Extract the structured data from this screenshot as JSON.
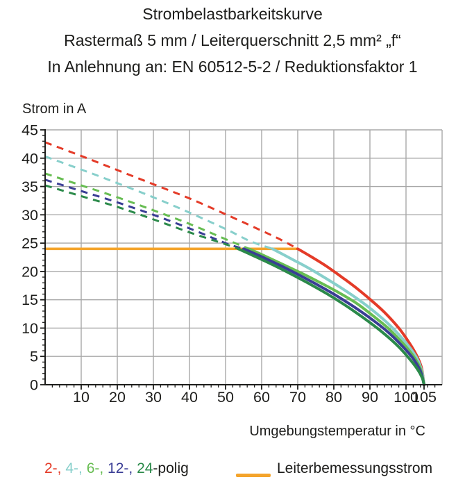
{
  "title": {
    "line1": "Strombelastbarkeitskurve",
    "line2": "Rastermaß 5 mm / Leiterquerschnitt 2,5 mm² „f“",
    "line3": "In Anlehnung an: EN 60512-5-2 / Reduktionsfaktor 1"
  },
  "chart_data": {
    "type": "line",
    "title": "Strombelastbarkeitskurve",
    "subtitle": "Rastermaß 5 mm / Leiterquerschnitt 2,5 mm² „f“",
    "note": "In Anlehnung an: EN 60512-5-2 / Reduktionsfaktor 1",
    "xlabel": "Umgebungstemperatur in °C",
    "ylabel": "Strom in A",
    "xlim": [
      0,
      110
    ],
    "ylim": [
      0,
      45
    ],
    "x_grid_step": 10,
    "y_grid_step": 5,
    "x_minor_tick_step": 2,
    "y_minor_tick_step": 1,
    "grid": true,
    "x_tick_labels": [
      10,
      20,
      30,
      40,
      50,
      60,
      70,
      80,
      90,
      100,
      105
    ],
    "y_tick_labels": [
      0,
      5,
      10,
      15,
      20,
      25,
      30,
      35,
      40,
      45
    ],
    "grid_color": "#a8a8a8",
    "axis_color": "#1d1d1b",
    "rated_current": {
      "label": "Leiterbemessungsstrom",
      "value_A": 24,
      "x_span": [
        0,
        70
      ],
      "color": "#f4a42c"
    },
    "series": [
      {
        "name": "2-polig",
        "poles": 2,
        "color": "#e43b28",
        "dashed": [
          [
            0,
            42.8
          ],
          [
            10,
            40.4
          ],
          [
            20,
            37.9
          ],
          [
            30,
            35.4
          ],
          [
            40,
            32.9
          ],
          [
            50,
            30.1
          ],
          [
            60,
            27.2
          ],
          [
            65,
            25.7
          ],
          [
            70,
            24
          ]
        ],
        "solid": [
          [
            70,
            24
          ],
          [
            74,
            22.5
          ],
          [
            78,
            20.9
          ],
          [
            82,
            19.1
          ],
          [
            86,
            17.2
          ],
          [
            90,
            15.1
          ],
          [
            94,
            12.8
          ],
          [
            98,
            10.0
          ],
          [
            101,
            7.3
          ],
          [
            103,
            5.1
          ],
          [
            104.3,
            3.0
          ],
          [
            105,
            0
          ]
        ]
      },
      {
        "name": "4-polig",
        "poles": 4,
        "color": "#87cfcb",
        "dashed": [
          [
            0,
            40.3
          ],
          [
            10,
            38.0
          ],
          [
            20,
            35.6
          ],
          [
            30,
            33.1
          ],
          [
            40,
            30.4
          ],
          [
            50,
            27.5
          ],
          [
            57,
            25.3
          ],
          [
            63,
            24
          ]
        ],
        "solid": [
          [
            63,
            24
          ],
          [
            68,
            22.3
          ],
          [
            73,
            20.6
          ],
          [
            78,
            18.7
          ],
          [
            83,
            16.7
          ],
          [
            88,
            14.5
          ],
          [
            92,
            12.5
          ],
          [
            96,
            10.2
          ],
          [
            100,
            7.4
          ],
          [
            103,
            4.7
          ],
          [
            104.4,
            2.4
          ],
          [
            105,
            0
          ]
        ]
      },
      {
        "name": "6-polig",
        "poles": 6,
        "color": "#67bd52",
        "dashed": [
          [
            0,
            37.3
          ],
          [
            10,
            35.2
          ],
          [
            20,
            33.1
          ],
          [
            30,
            30.8
          ],
          [
            40,
            28.4
          ],
          [
            50,
            25.7
          ],
          [
            56.5,
            24
          ]
        ],
        "solid": [
          [
            56.5,
            24
          ],
          [
            61,
            22.7
          ],
          [
            66,
            21.2
          ],
          [
            71,
            19.7
          ],
          [
            76,
            18.1
          ],
          [
            81,
            16.4
          ],
          [
            86,
            14.5
          ],
          [
            90,
            12.6
          ],
          [
            95,
            10.0
          ],
          [
            99,
            7.4
          ],
          [
            102,
            5.1
          ],
          [
            104,
            2.8
          ],
          [
            105,
            0
          ]
        ]
      },
      {
        "name": "12-polig",
        "poles": 12,
        "color": "#3a3d95",
        "dashed": [
          [
            0,
            36.2
          ],
          [
            10,
            34.2
          ],
          [
            20,
            32.2
          ],
          [
            30,
            30.0
          ],
          [
            40,
            27.6
          ],
          [
            50,
            25.0
          ],
          [
            55,
            24
          ]
        ],
        "solid": [
          [
            55,
            24
          ],
          [
            60,
            22.6
          ],
          [
            65,
            21.1
          ],
          [
            70,
            19.5
          ],
          [
            75,
            17.8
          ],
          [
            80,
            16.0
          ],
          [
            85,
            14.0
          ],
          [
            90,
            11.8
          ],
          [
            95,
            9.3
          ],
          [
            99,
            6.8
          ],
          [
            102,
            4.6
          ],
          [
            104,
            2.4
          ],
          [
            105,
            0
          ]
        ]
      },
      {
        "name": "24-polig",
        "poles": 24,
        "color": "#2b8a4a",
        "dashed": [
          [
            0,
            35.2
          ],
          [
            10,
            33.3
          ],
          [
            20,
            31.4
          ],
          [
            30,
            29.2
          ],
          [
            40,
            26.9
          ],
          [
            50,
            24.8
          ],
          [
            53.5,
            24
          ]
        ],
        "solid": [
          [
            53.5,
            24
          ],
          [
            58,
            22.7
          ],
          [
            63,
            21.2
          ],
          [
            68,
            19.6
          ],
          [
            73,
            17.9
          ],
          [
            78,
            16.1
          ],
          [
            83,
            14.1
          ],
          [
            88,
            11.9
          ],
          [
            93,
            9.5
          ],
          [
            97,
            7.3
          ],
          [
            100,
            5.3
          ],
          [
            103,
            2.9
          ],
          [
            104.5,
            1.2
          ],
          [
            105,
            0
          ]
        ]
      }
    ]
  },
  "legend": {
    "poles_parts": [
      {
        "text": "2-, ",
        "color": "#e43b28"
      },
      {
        "text": "4-, ",
        "color": "#87cfcb"
      },
      {
        "text": "6-, ",
        "color": "#67bd52"
      },
      {
        "text": "12-, ",
        "color": "#3a3d95"
      },
      {
        "text": "24",
        "color": "#2b8a4a"
      },
      {
        "text": "-polig",
        "color": "#1d1d1b"
      }
    ]
  }
}
